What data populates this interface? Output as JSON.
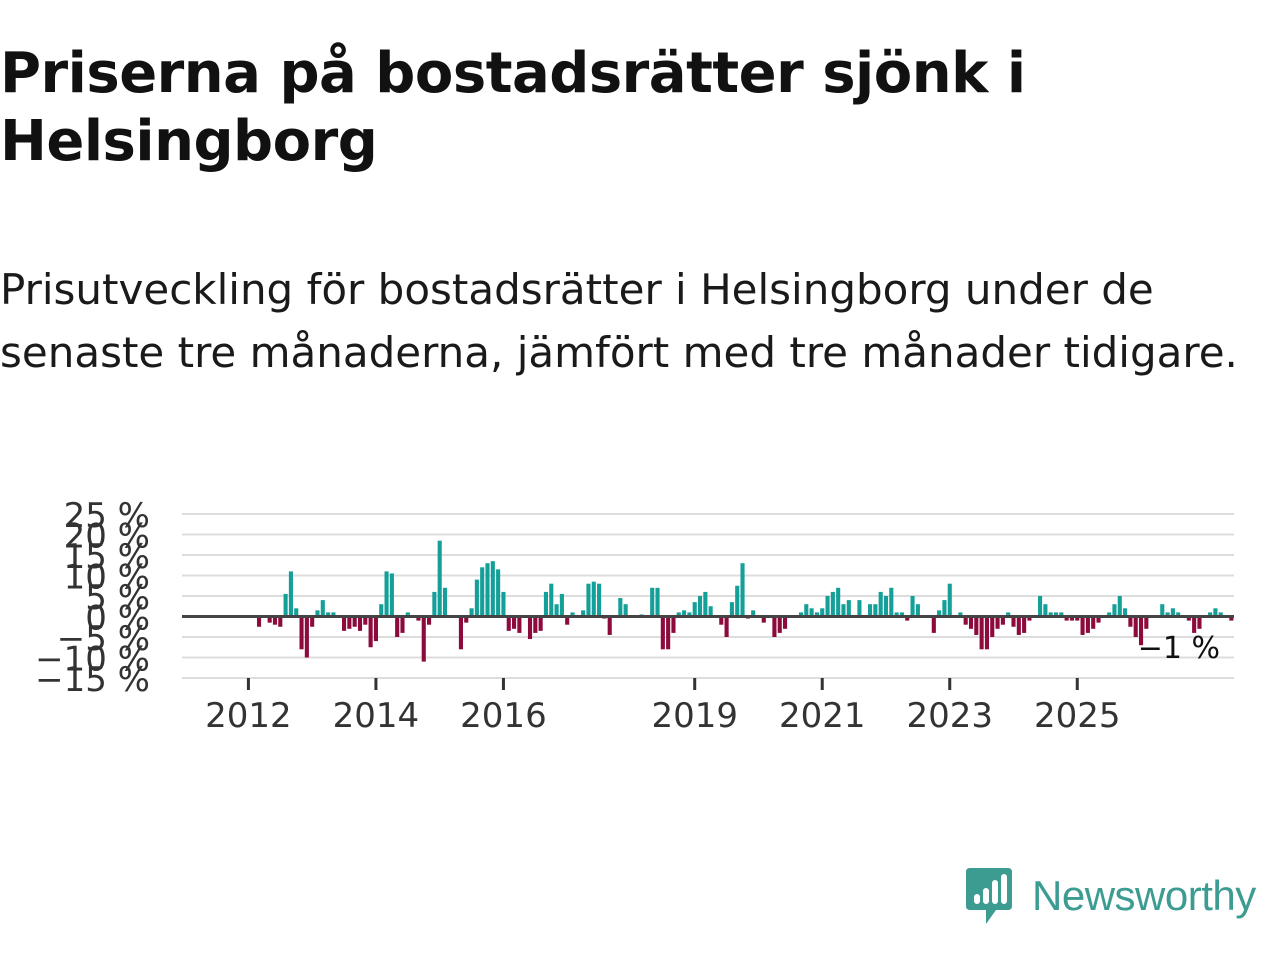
{
  "header": {
    "title": "Priserna på bostadsrätter sjönk i Helsingborg",
    "subtitle": "Prisutveckling för bostadsrätter i Helsingborg under de senaste tre månaderna, jämfört med tre månader tidigare."
  },
  "branding": {
    "name": "Newsworthy"
  },
  "colors": {
    "positive": "#14a098",
    "negative": "#8c0a3c",
    "grid": "#dddddd",
    "zero_line": "#444444",
    "brand": "#3d9c92"
  },
  "chart_data": {
    "type": "bar",
    "x_start": "2011-01",
    "y_ticks": [
      25,
      20,
      15,
      10,
      5,
      0,
      -5,
      -10,
      -15
    ],
    "y_tick_labels": [
      "25 %",
      "20 %",
      "15 %",
      "10 %",
      "5 %",
      "0 %",
      "−5 %",
      "−10 %",
      "−15 %"
    ],
    "ylim": [
      -15,
      25
    ],
    "x_ticks": [
      "2012",
      "2014",
      "2016",
      "2019",
      "2021",
      "2023",
      "2025"
    ],
    "last_value_label": "−1 %",
    "grid": true,
    "values": [
      0,
      0,
      0,
      0,
      0,
      0,
      0,
      0,
      0,
      0,
      0,
      0,
      0,
      0,
      -2.5,
      0,
      -1.5,
      -2,
      -2.5,
      5.5,
      11,
      2,
      -8,
      -10,
      -2.5,
      1.5,
      4,
      1,
      1,
      0,
      -3.5,
      -3,
      -2.5,
      -3.5,
      -2,
      -7.5,
      -6,
      3,
      11,
      10.5,
      -5,
      -4,
      1,
      0,
      -1,
      -11,
      -2,
      6,
      18.5,
      7,
      0,
      0,
      -8,
      -1.5,
      2,
      9,
      12,
      13,
      13.5,
      11.5,
      6,
      -3.5,
      -3,
      -4,
      0,
      -5.5,
      -4,
      -3.5,
      6,
      8,
      3,
      5.5,
      -2,
      1,
      0,
      1.5,
      8,
      8.5,
      8,
      -0.5,
      -4.5,
      0,
      4.5,
      3,
      0,
      0,
      0.5,
      0,
      7,
      7,
      -8,
      -8,
      -4,
      1,
      1.5,
      1,
      3.5,
      5,
      6,
      2.5,
      0,
      -2,
      -5,
      3.5,
      7.5,
      13,
      -0.5,
      1.5,
      0,
      -1.5,
      0,
      -5,
      -4,
      -3,
      0,
      0,
      1,
      3,
      2,
      1,
      2,
      5,
      6,
      7,
      3,
      4,
      0,
      4,
      0,
      3,
      3,
      6,
      5,
      7,
      1,
      1,
      -1,
      5,
      3,
      0,
      0,
      -4,
      1.5,
      4,
      8,
      0,
      1,
      -2,
      -3,
      -4.5,
      -8,
      -8,
      -5,
      -3,
      -2,
      1,
      -2.5,
      -4.5,
      -4,
      -1,
      0,
      5,
      3,
      1,
      1,
      1,
      -1,
      -1,
      -1,
      -4.5,
      -4,
      -3,
      -1.5,
      0,
      1,
      3,
      5,
      2,
      -2.5,
      -5,
      -7,
      -3,
      0,
      0,
      3,
      1,
      2,
      1,
      0,
      -1,
      -4,
      -3,
      0,
      1,
      2,
      1,
      0,
      -1
    ]
  }
}
